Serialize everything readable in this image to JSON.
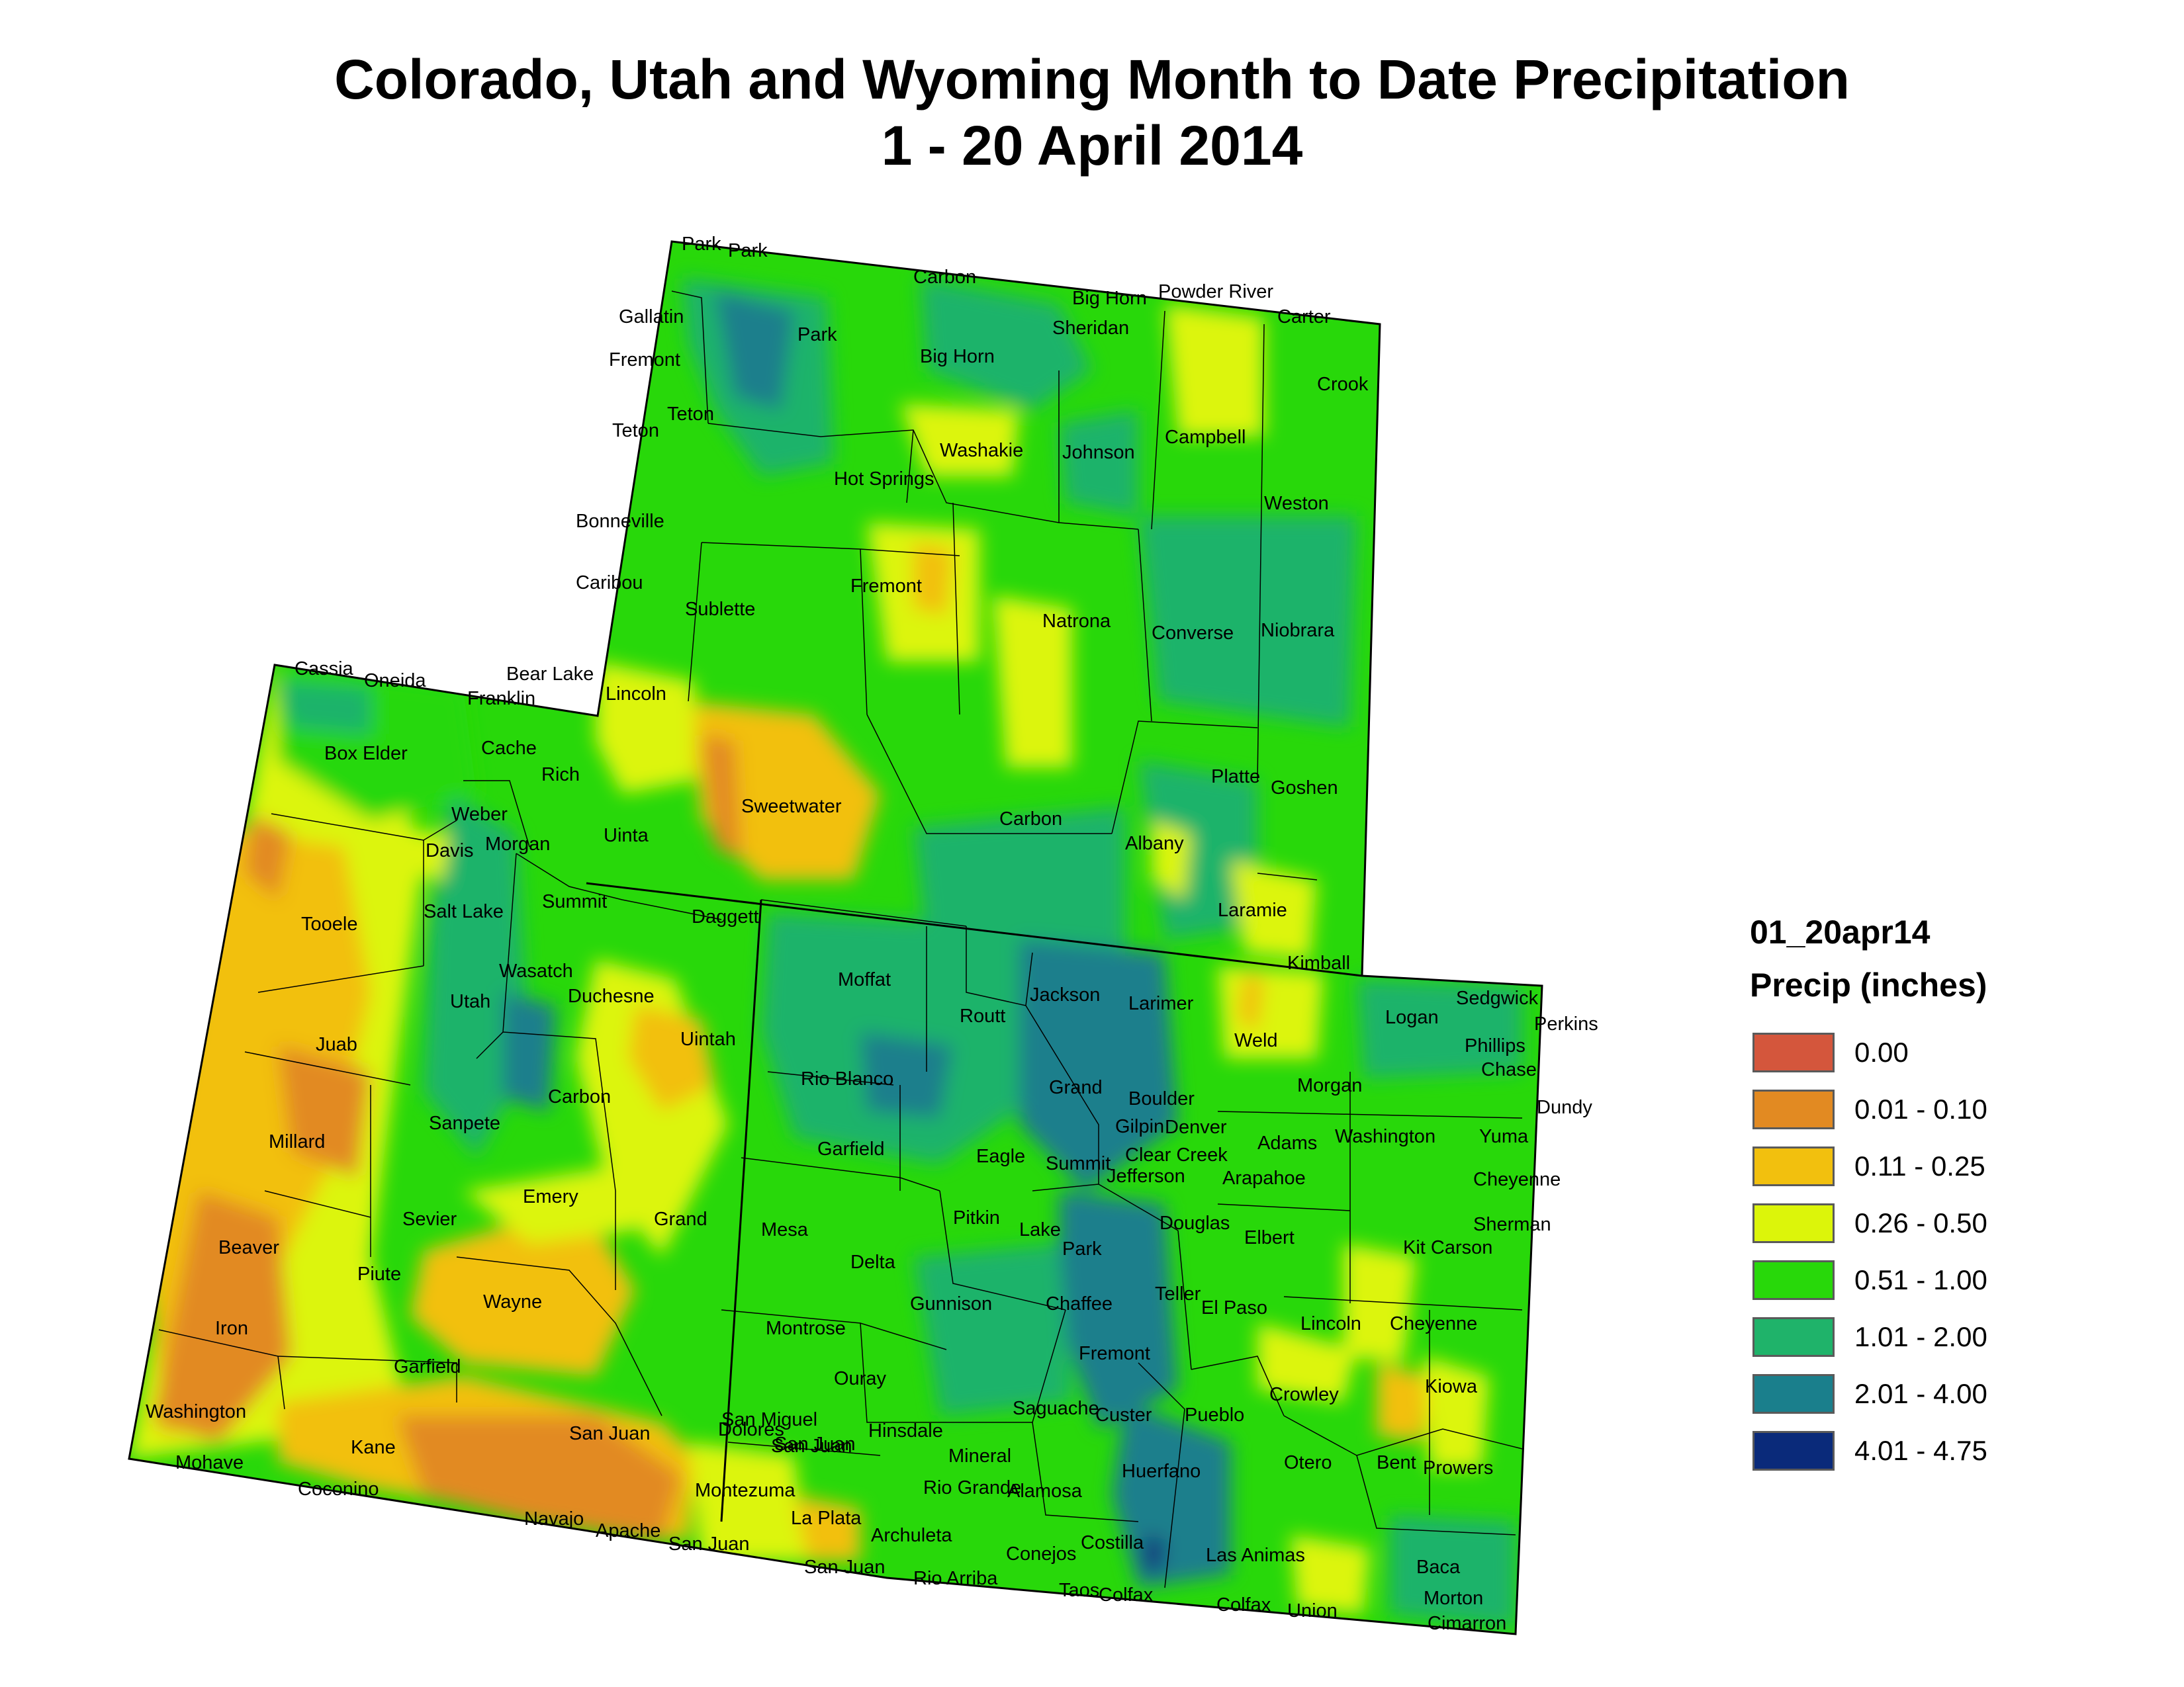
{
  "title_line1": "Colorado, Utah and Wyoming Month to Date Precipitation",
  "title_line2": "1 - 20 April 2014",
  "legend": {
    "layer_name": "01_20apr14",
    "field_name": "Precip (inches)",
    "classes": [
      {
        "label": "0.00",
        "color": "#d4563c"
      },
      {
        "label": "0.01 - 0.10",
        "color": "#e28a22"
      },
      {
        "label": "0.11 - 0.25",
        "color": "#f2c00e"
      },
      {
        "label": "0.26 - 0.50",
        "color": "#dcf50a"
      },
      {
        "label": "0.51 - 1.00",
        "color": "#28d80a"
      },
      {
        "label": "1.01 - 2.00",
        "color": "#1fb36a"
      },
      {
        "label": "2.01 - 4.00",
        "color": "#1a7f8c"
      },
      {
        "label": "4.01 - 4.75",
        "color": "#0a2a7a"
      }
    ]
  },
  "county_labels": [
    "Park",
    "Park",
    "Carbon",
    "Big Horn",
    "Powder River",
    "Gallatin",
    "Sheridan",
    "Carter",
    "Fremont",
    "Park",
    "Big Horn",
    "Crook",
    "Teton",
    "Teton",
    "Washakie",
    "Johnson",
    "Campbell",
    "Hot Springs",
    "Weston",
    "Bonneville",
    "Caribou",
    "Fremont",
    "Sublette",
    "Natrona",
    "Converse",
    "Niobrara",
    "Cassia",
    "Oneida",
    "Bear Lake",
    "Franklin",
    "Lincoln",
    "Box Elder",
    "Cache",
    "Rich",
    "Sweetwater",
    "Weber",
    "Platte",
    "Goshen",
    "Carbon",
    "Davis",
    "Morgan",
    "Uinta",
    "Albany",
    "Tooele",
    "Salt Lake",
    "Summit",
    "Daggett",
    "Laramie",
    "Kimball",
    "Wasatch",
    "Moffat",
    "Jackson",
    "Larimer",
    "Sedgwick",
    "Perkins",
    "Logan",
    "Phillips",
    "Chase",
    "Utah",
    "Duchesne",
    "Uintah",
    "Routt",
    "Juab",
    "Weld",
    "Rio Blanco",
    "Grand",
    "Morgan",
    "Boulder",
    "Dundy",
    "Gilpin",
    "Denver",
    "Sanpete",
    "Carbon",
    "Millard",
    "Washington",
    "Yuma",
    "Adams",
    "Garfield",
    "Eagle",
    "Summit",
    "Clear Creek",
    "Jefferson",
    "Arapahoe",
    "Cheyenne",
    "Emery",
    "Sevier",
    "Grand",
    "Pitkin",
    "Mesa",
    "Lake",
    "Douglas",
    "Sherman",
    "Beaver",
    "Elbert",
    "Kit Carson",
    "Delta",
    "Park",
    "Piute",
    "Teller",
    "Wayne",
    "Gunnison",
    "Chaffee",
    "El Paso",
    "Lincoln",
    "Cheyenne",
    "Iron",
    "Montrose",
    "Fremont",
    "Garfield",
    "Kiowa",
    "Ouray",
    "Crowley",
    "San Miguel",
    "Saguache",
    "Custer",
    "Pueblo",
    "Washington",
    "Dolores",
    "Hinsdale",
    "San Juan",
    "Kane",
    "San Juan",
    "Mineral",
    "Huerfano",
    "Otero",
    "Bent",
    "Prowers",
    "Mohave",
    "San Juan",
    "Coconino",
    "Rio Grande",
    "Alamosa",
    "Montezuma",
    "Navajo",
    "La Plata",
    "Apache",
    "Archuleta",
    "Costilla",
    "Las Animas",
    "San Juan",
    "Conejos",
    "San Juan",
    "Baca",
    "Rio Arriba",
    "Taos",
    "Colfax",
    "Colfax",
    "Union",
    "Morton",
    "Cimarron"
  ]
}
